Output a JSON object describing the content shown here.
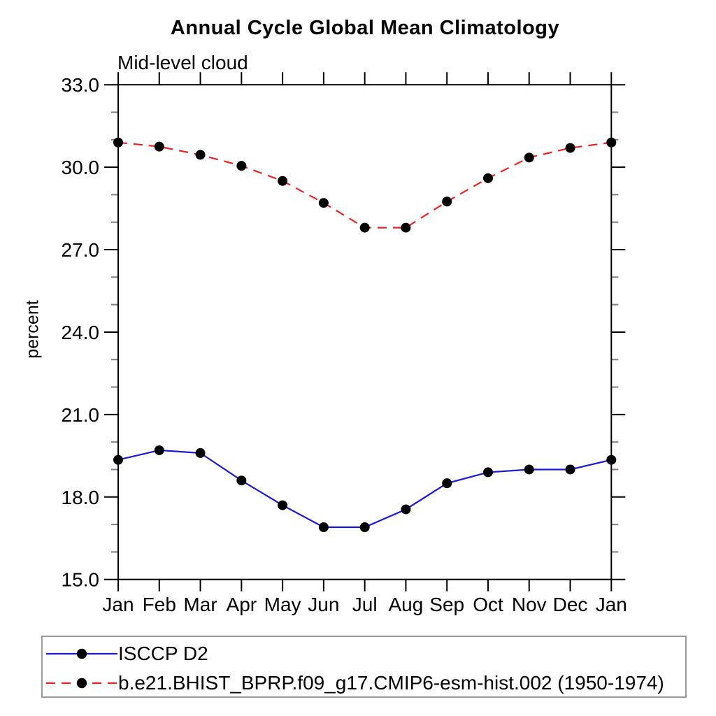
{
  "page": {
    "background": "#ffffff"
  },
  "chart_data": {
    "type": "line",
    "title": "Annual Cycle Global Mean Climatology",
    "subtitle": "Mid-level cloud",
    "xlabel": "",
    "ylabel": "percent",
    "categories": [
      "Jan",
      "Feb",
      "Mar",
      "Apr",
      "May",
      "Jun",
      "Jul",
      "Aug",
      "Sep",
      "Oct",
      "Nov",
      "Dec",
      "Jan"
    ],
    "ylim": [
      15.0,
      33.0
    ],
    "yticks": [
      15.0,
      18.0,
      21.0,
      24.0,
      27.0,
      30.0,
      33.0
    ],
    "y_tick_format_decimals": 1,
    "y_minor_step": 1.0,
    "grid": false,
    "legend_position": "bottom-left-box",
    "axis_color": "#000000",
    "minor_tick_color": "#808080",
    "marker": "filled-circle",
    "marker_color": "#000000",
    "series": [
      {
        "name": "ISCCP D2",
        "color": "#1a1ad6",
        "line_style": "solid",
        "values": [
          19.35,
          19.7,
          19.6,
          18.6,
          17.7,
          16.9,
          16.9,
          17.55,
          18.5,
          18.9,
          19.0,
          19.0,
          19.35
        ]
      },
      {
        "name": "b.e21.BHIST_BPRP.f09_g17.CMIP6-esm-hist.002 (1950-1974)",
        "color": "#ee2222",
        "line_style": "dashed",
        "values": [
          30.9,
          30.75,
          30.45,
          30.05,
          29.5,
          28.7,
          27.8,
          27.8,
          28.75,
          29.6,
          30.35,
          30.7,
          30.9
        ]
      }
    ]
  }
}
